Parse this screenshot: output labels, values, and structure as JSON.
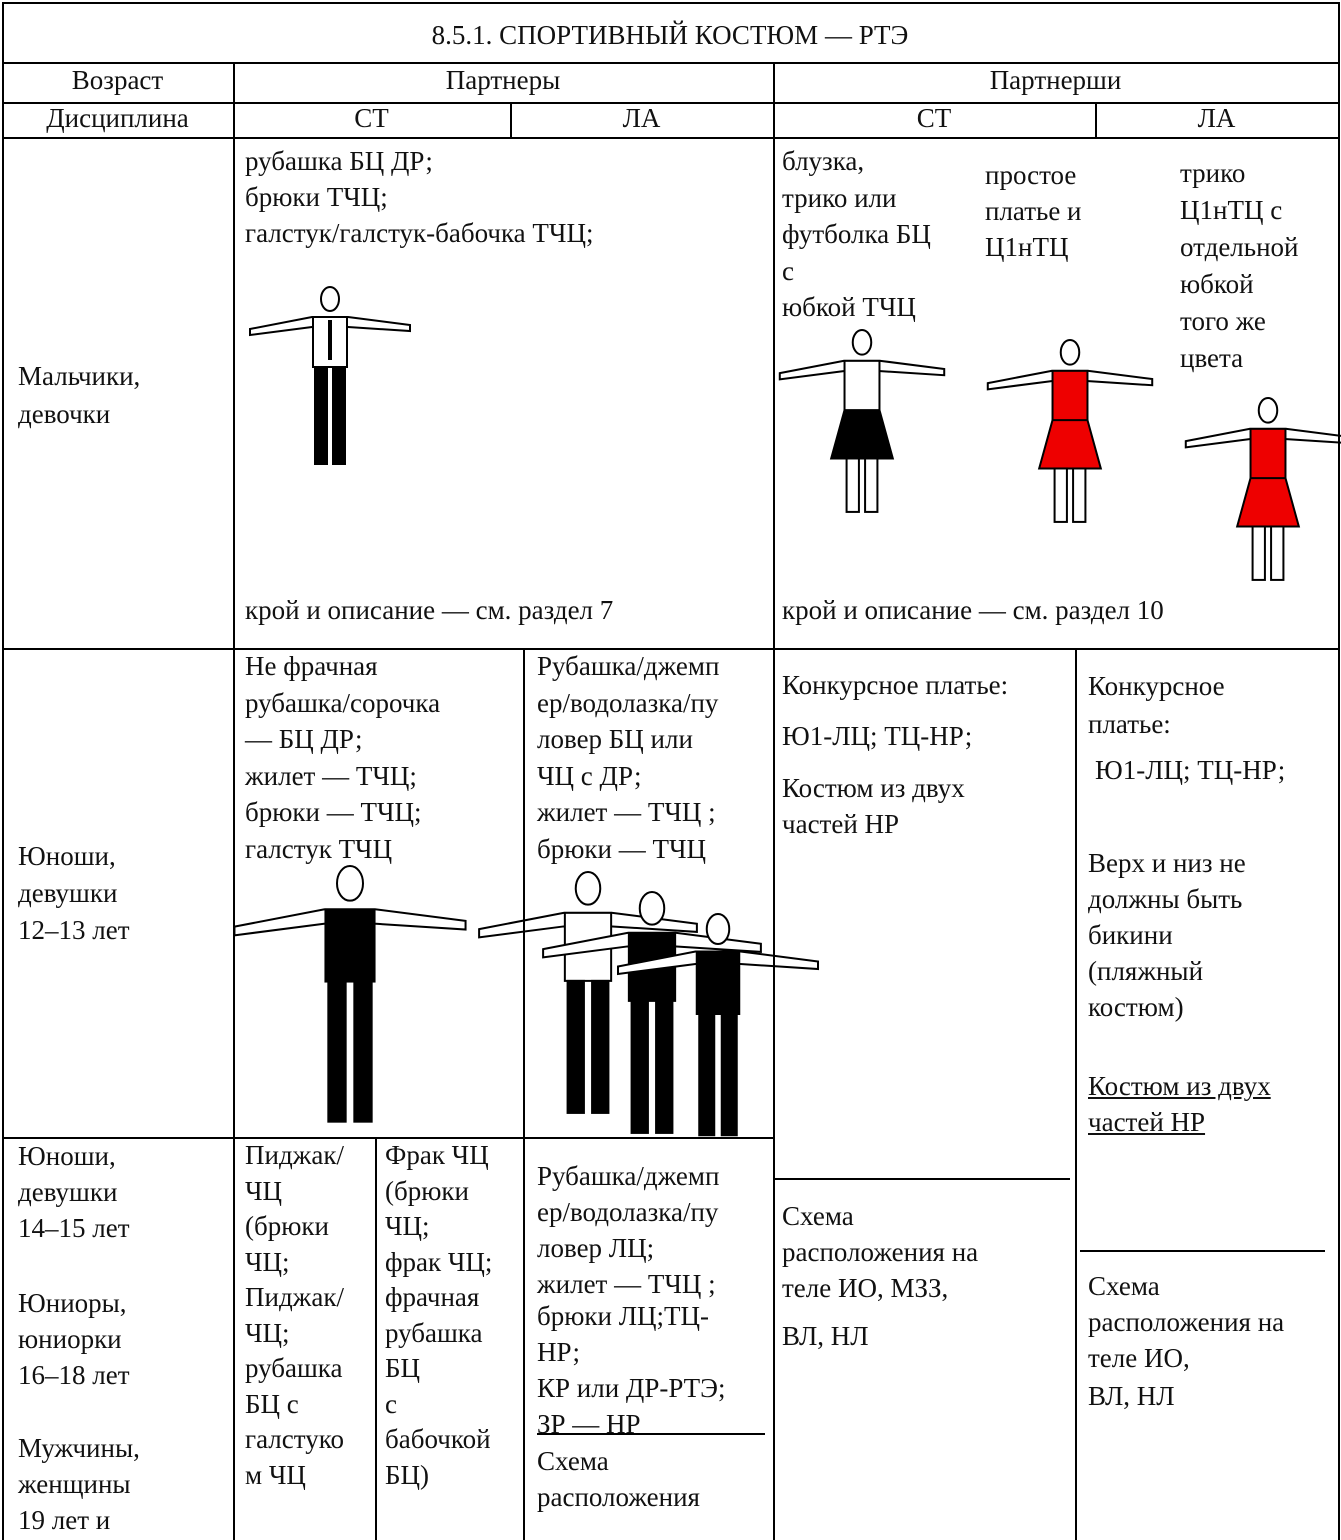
{
  "title": "8.5.1. СПОРТИВНЫЙ КОСТЮМ — РТЭ",
  "header": {
    "age": "Возраст",
    "partners": "Партнеры",
    "partnersha": "Партнерши",
    "discipline": "Дисциплина",
    "partners_st": "СТ",
    "partners_la": "ЛА",
    "partnersha_st": "СТ",
    "partnersha_la": "ЛА"
  },
  "cells": [
    {
      "lines": [
        "Мальчики,",
        "девочки"
      ]
    },
    {
      "lines": [
        "рубашка БЦ ДР;",
        "брюки ТЧЦ;",
        "галстук/галстук-бабочка ТЧЦ;"
      ]
    },
    {
      "lines": [
        "крой и описание — см. раздел 7"
      ]
    },
    {
      "lines": [
        "блузка,",
        "трико или",
        "футболка БЦ",
        "с",
        "юбкой ТЧЦ"
      ]
    },
    {
      "lines": [
        "простое",
        "платье и",
        "Ц1нТЦ"
      ]
    },
    {
      "lines": [
        "трико",
        "Ц1нТЦ с",
        "отдельной",
        "юбкой",
        "того же",
        "цвета"
      ]
    },
    {
      "lines": [
        "крой и описание — см. раздел 10"
      ]
    },
    {
      "lines": [
        "Юноши,",
        "девушки",
        "12–13 лет"
      ]
    },
    {
      "lines": [
        "Не фрачная",
        "рубашка/сорочка",
        "— БЦ ДР;",
        "жилет — ТЧЦ;",
        "брюки — ТЧЦ;",
        "галстук ТЧЦ"
      ]
    },
    {
      "lines": [
        "Рубашка/джемп",
        "ер/водолазка/пу",
        "ловер БЦ или",
        "ЧЦ с ДР;",
        "жилет — ТЧЦ ;",
        "брюки — ТЧЦ"
      ]
    },
    {
      "lines": [
        "Конкурсное платье:"
      ]
    },
    {
      "lines": [
        "Ю1-ЛЦ; ТЦ-НР;"
      ]
    },
    {
      "lines": [
        "Костюм из двух",
        "частей НР"
      ]
    },
    {
      "lines": [
        "Конкурсное",
        "платье:"
      ]
    },
    {
      "lines": [
        "Ю1-ЛЦ; ТЦ-НР;"
      ]
    },
    {
      "lines": [
        "Верх и низ не",
        "должны быть",
        "бикини",
        "(пляжный",
        "костюм)"
      ]
    },
    {
      "lines": [
        "Костюм из двух",
        "частей НР"
      ]
    },
    {
      "lines": [
        "Юноши,",
        "девушки",
        "14–15 лет"
      ]
    },
    {
      "lines": [
        "Юниоры,",
        "юниорки",
        "16–18 лет"
      ]
    },
    {
      "lines": [
        "Мужчины,",
        "женщины",
        "19 лет и"
      ]
    },
    {
      "lines": [
        "Пиджак/",
        "ЧЦ",
        "(брюки",
        "ЧЦ;",
        "Пиджак/",
        "ЧЦ;",
        "рубашка",
        "БЦ с",
        "галстуко",
        "м ЧЦ"
      ]
    },
    {
      "lines": [
        "Фрак ЧЦ",
        "(брюки",
        "ЧЦ;",
        "фрак ЧЦ;",
        "фрачная",
        "рубашка",
        "БЦ",
        "с",
        "бабочкой",
        "БЦ)"
      ]
    },
    {
      "lines": [
        "Рубашка/джемп",
        "ер/водолазка/пу",
        "ловер ЛЦ;",
        "жилет — ТЧЦ ;"
      ]
    },
    {
      "lines": [
        "брюки ЛЦ;ТЦ-",
        "НР;",
        "КР или ДР-РТЭ;",
        "ЗР — НР"
      ]
    },
    {
      "lines": [
        "Схема",
        "расположения"
      ]
    },
    {
      "lines": [
        "Схема",
        "расположения на",
        "теле ИО, МЗЗ,"
      ]
    },
    {
      "lines": [
        "ВЛ, НЛ"
      ]
    },
    {
      "lines": [
        "Схема",
        "расположения на",
        "теле ИО,"
      ]
    },
    {
      "lines": [
        "ВЛ, НЛ"
      ]
    }
  ]
}
